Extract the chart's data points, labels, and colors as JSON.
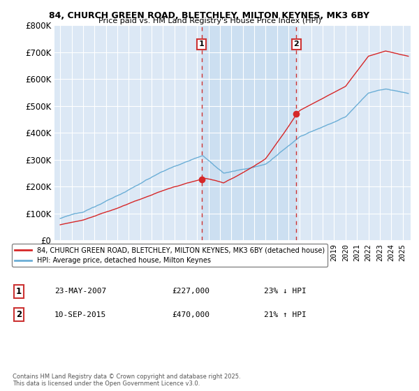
{
  "title1": "84, CHURCH GREEN ROAD, BLETCHLEY, MILTON KEYNES, MK3 6BY",
  "title2": "Price paid vs. HM Land Registry's House Price Index (HPI)",
  "legend_line1": "84, CHURCH GREEN ROAD, BLETCHLEY, MILTON KEYNES, MK3 6BY (detached house)",
  "legend_line2": "HPI: Average price, detached house, Milton Keynes",
  "annotation1_date": "23-MAY-2007",
  "annotation1_price": "£227,000",
  "annotation1_hpi": "23% ↓ HPI",
  "annotation2_date": "10-SEP-2015",
  "annotation2_price": "£470,000",
  "annotation2_hpi": "21% ↑ HPI",
  "footer": "Contains HM Land Registry data © Crown copyright and database right 2025.\nThis data is licensed under the Open Government Licence v3.0.",
  "sale1_year": 2007.38,
  "sale1_price": 227000,
  "sale2_year": 2015.69,
  "sale2_price": 470000,
  "hpi_color": "#6baed6",
  "price_color": "#d62728",
  "bg_color": "#dce8f5",
  "shade_color": "#c8ddf0",
  "ylim_max": 800000,
  "xlim_min": 1994.5,
  "xlim_max": 2025.7
}
